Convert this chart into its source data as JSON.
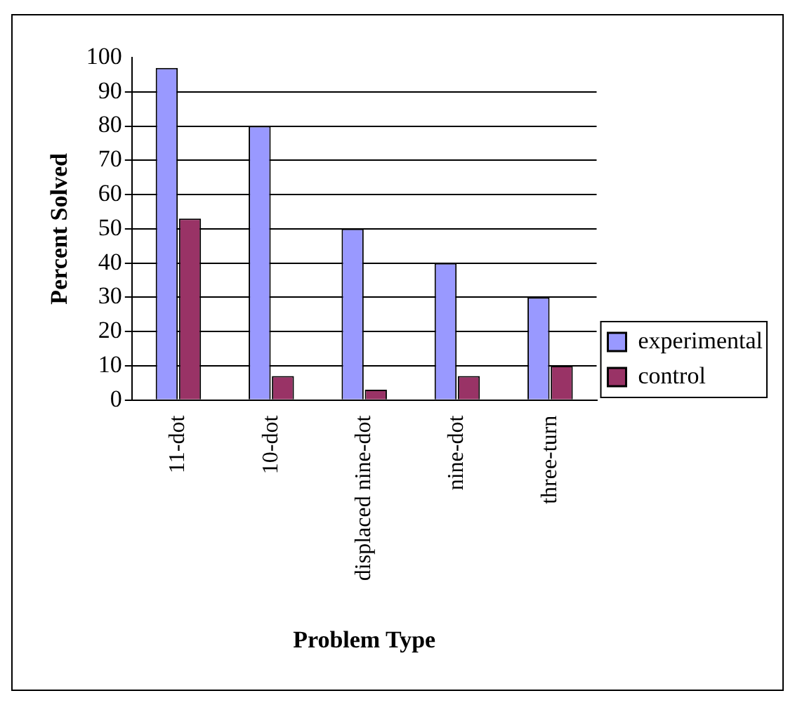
{
  "chart_data": {
    "type": "bar",
    "xlabel": "Problem Type",
    "ylabel": "Percent Solved",
    "categories": [
      "11-dot",
      "10-dot",
      "displaced nine-dot",
      "nine-dot",
      "three-turn"
    ],
    "series": [
      {
        "name": "experimental",
        "color": "#9999ff",
        "values": [
          97,
          80,
          50,
          40,
          30
        ]
      },
      {
        "name": "control",
        "color": "#993366",
        "values": [
          53,
          7,
          3,
          7,
          10
        ]
      }
    ],
    "ylim": [
      0,
      100
    ],
    "yticks": [
      0,
      10,
      20,
      30,
      40,
      50,
      60,
      70,
      80,
      90,
      100
    ],
    "grid": "y",
    "legend": "right"
  }
}
